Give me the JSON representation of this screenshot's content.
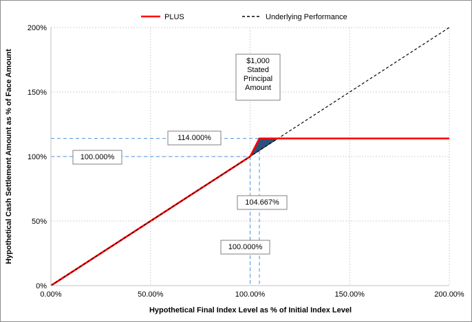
{
  "chart_data": {
    "type": "line",
    "xlabel": "Hypothetical Final Index Level as % of Initial Index Level",
    "ylabel": "Hypothetical Cash Settlement Amount as % of Face Amount",
    "xlim": [
      0,
      200
    ],
    "ylim": [
      0,
      200
    ],
    "x_ticks": [
      "0.00%",
      "50.00%",
      "100.00%",
      "150.00%",
      "200.00%"
    ],
    "y_ticks": [
      "0%",
      "50%",
      "100%",
      "150%",
      "200%"
    ],
    "grid": true,
    "legend_position": "top",
    "series": [
      {
        "name": "PLUS",
        "color": "#ff0000",
        "style": "solid",
        "x": [
          0,
          100,
          104.667,
          200
        ],
        "y": [
          0,
          100,
          114,
          114
        ]
      },
      {
        "name": "Underlying Performance",
        "color": "#000000",
        "style": "dashed",
        "x": [
          0,
          200
        ],
        "y": [
          0,
          200
        ]
      }
    ],
    "annotations": [
      {
        "text": "$1,000 Stated Principal Amount",
        "lines": [
          "$1,000",
          "Stated",
          "Principal",
          "Amount"
        ]
      },
      {
        "text": "114.000%"
      },
      {
        "text": "100.000%",
        "target": "y"
      },
      {
        "text": "104.667%"
      },
      {
        "text": "100.000%",
        "target": "x"
      }
    ],
    "reference_lines": [
      {
        "axis": "y",
        "value": 114,
        "color": "#4a8fe0"
      },
      {
        "axis": "y",
        "value": 100,
        "color": "#4a8fe0"
      },
      {
        "axis": "x",
        "value": 100,
        "color": "#4a8fe0"
      },
      {
        "axis": "x",
        "value": 104.667,
        "color": "#4a8fe0"
      }
    ],
    "shaded_region": {
      "color": "#2f4f7a",
      "x": [
        100,
        104.667,
        114
      ],
      "y": [
        100,
        114,
        114
      ]
    }
  }
}
